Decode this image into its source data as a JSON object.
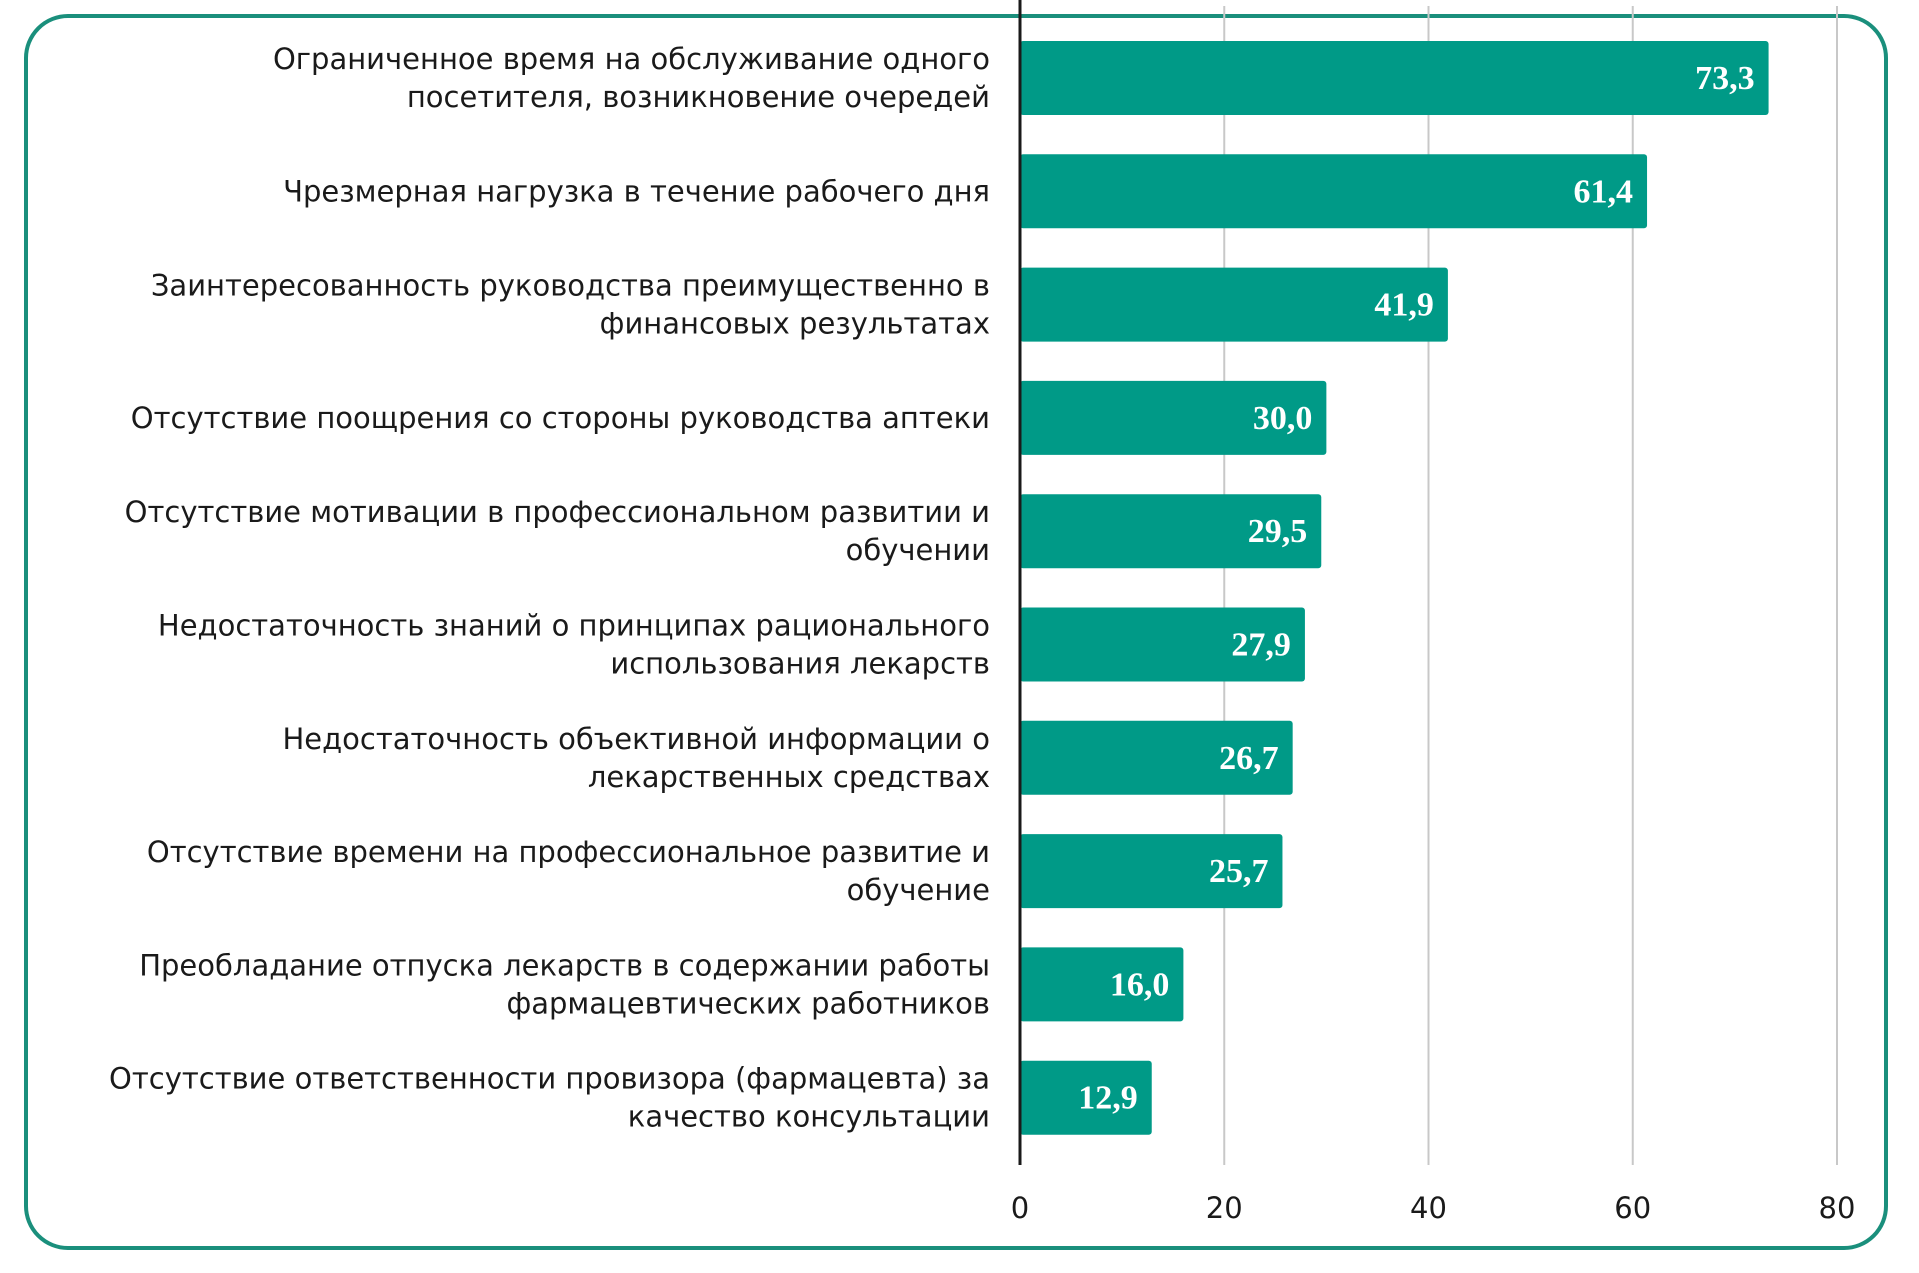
{
  "chart_data": {
    "type": "bar",
    "orientation": "horizontal",
    "title": "",
    "xlabel": "",
    "ylabel": "",
    "xlim": [
      0,
      80
    ],
    "x_ticks": [
      0,
      20,
      40,
      60,
      80
    ],
    "grid": "vertical",
    "bar_color": "#009a87",
    "categories": [
      [
        "Ограниченное время на обслуживание одного",
        "посетителя, возникновение очередей"
      ],
      [
        "Чрезмерная нагрузка в течение рабочего дня"
      ],
      [
        "Заинтересованность руководства преимущественно в",
        "финансовых результатах"
      ],
      [
        "Отсутствие поощрения со стороны руководства аптеки"
      ],
      [
        "Отсутствие мотивации в профессиональном развитии и",
        "обучении"
      ],
      [
        "Недостаточность знаний о принципах рационального",
        "использования лекарств"
      ],
      [
        "Недостаточность объективной информации о",
        "лекарственных средствах"
      ],
      [
        "Отсутствие времени на профессиональное развитие и",
        "обучение"
      ],
      [
        "Преобладание отпуска лекарств в содержании работы",
        "фармацевтических работников"
      ],
      [
        "Отсутствие ответственности провизора (фармацевта) за",
        "качество консультации"
      ]
    ],
    "values": [
      73.3,
      61.4,
      41.9,
      30.0,
      29.5,
      27.9,
      26.7,
      25.7,
      16.0,
      12.9
    ],
    "value_labels": [
      "73,3",
      "61,4",
      "41,9",
      "30,0",
      "29,5",
      "27,9",
      "26,7",
      "25,7",
      "16,0",
      "12,9"
    ]
  }
}
